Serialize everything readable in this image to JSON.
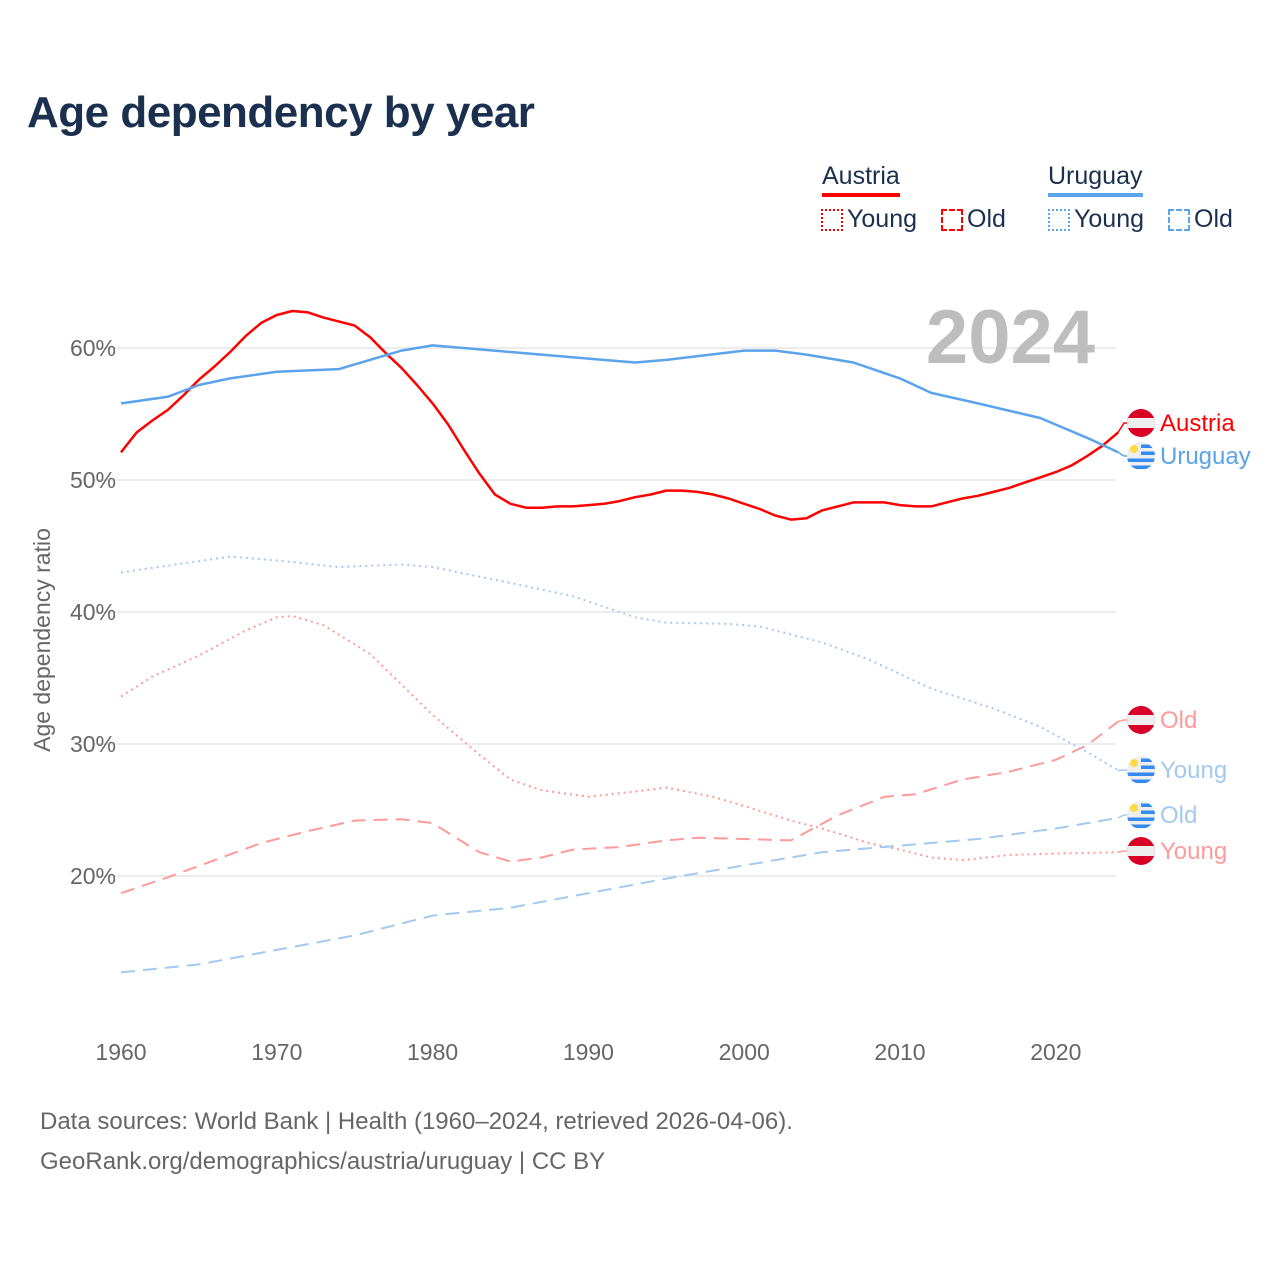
{
  "title": "Age dependency by year",
  "legend": {
    "groups": [
      {
        "country": "Austria",
        "color": "#ff0000",
        "items": [
          "Young",
          "Old"
        ]
      },
      {
        "country": "Uruguay",
        "color": "#5ba3ea",
        "items": [
          "Young",
          "Old"
        ]
      }
    ]
  },
  "year_watermark": "2024",
  "sources": {
    "line1": "Data sources: World Bank | Health (1960–2024, retrieved 2026-04-06).",
    "line2": "GeoRank.org/demographics/austria/uruguay | CC BY"
  },
  "end_labels": [
    "Austria",
    "Uruguay",
    "Old",
    "Young",
    "Old",
    "Young"
  ],
  "chart_data": {
    "type": "line",
    "title": "Age dependency by year",
    "xlabel": "",
    "ylabel": "Age dependency ratio",
    "xlim": [
      1960,
      2024
    ],
    "ylim": [
      10,
      64
    ],
    "x_ticks": [
      "1960",
      "1970",
      "1980",
      "1990",
      "2000",
      "2010",
      "2020"
    ],
    "y_ticks": [
      "20%",
      "30%",
      "40%",
      "50%",
      "60%"
    ],
    "y_tick_values": [
      20,
      30,
      40,
      50,
      60
    ],
    "grid": true,
    "series": [
      {
        "name": "Austria",
        "style": "solid",
        "color": "#ff0000",
        "x": [
          1960,
          1961,
          1962,
          1963,
          1964,
          1965,
          1966,
          1967,
          1968,
          1969,
          1970,
          1971,
          1972,
          1973,
          1974,
          1975,
          1976,
          1977,
          1978,
          1979,
          1980,
          1981,
          1982,
          1983,
          1984,
          1985,
          1986,
          1987,
          1988,
          1989,
          1990,
          1991,
          1992,
          1993,
          1994,
          1995,
          1996,
          1997,
          1998,
          1999,
          2000,
          2001,
          2002,
          2003,
          2004,
          2005,
          2006,
          2007,
          2008,
          2009,
          2010,
          2011,
          2012,
          2013,
          2014,
          2015,
          2016,
          2017,
          2018,
          2019,
          2020,
          2021,
          2022,
          2023,
          2024
        ],
        "y": [
          52.1,
          53.6,
          54.5,
          55.3,
          56.4,
          57.6,
          58.6,
          59.7,
          60.9,
          61.9,
          62.5,
          62.8,
          62.7,
          62.3,
          62.0,
          61.7,
          60.8,
          59.6,
          58.5,
          57.2,
          55.8,
          54.2,
          52.3,
          50.5,
          48.9,
          48.2,
          47.9,
          47.9,
          48.0,
          48.0,
          48.1,
          48.2,
          48.4,
          48.7,
          48.9,
          49.2,
          49.2,
          49.1,
          48.9,
          48.6,
          48.2,
          47.8,
          47.3,
          47.0,
          47.1,
          47.7,
          48.0,
          48.3,
          48.3,
          48.3,
          48.1,
          48.0,
          48.0,
          48.3,
          48.6,
          48.8,
          49.1,
          49.4,
          49.8,
          50.2,
          50.6,
          51.1,
          51.8,
          52.6,
          53.6
        ]
      },
      {
        "name": "Uruguay",
        "style": "solid",
        "color": "#5ba3ea",
        "x": [
          1960,
          1963,
          1965,
          1967,
          1970,
          1974,
          1978,
          1980,
          1985,
          1990,
          1993,
          1995,
          2000,
          2002,
          2004,
          2007,
          2010,
          2012,
          2015,
          2019,
          2020,
          2022,
          2024
        ],
        "y": [
          55.8,
          56.3,
          57.2,
          57.7,
          58.2,
          58.4,
          59.8,
          60.2,
          59.7,
          59.2,
          58.9,
          59.1,
          59.8,
          59.8,
          59.5,
          58.9,
          57.7,
          56.6,
          55.8,
          54.7,
          54.2,
          53.2,
          52.1
        ]
      },
      {
        "name": "Austria Young",
        "style": "dotted",
        "color": "#ff9a9a",
        "x": [
          1960,
          1962,
          1965,
          1968,
          1970,
          1971,
          1973,
          1976,
          1980,
          1983,
          1985,
          1987,
          1990,
          1993,
          1995,
          1998,
          2000,
          2003,
          2005,
          2008,
          2010,
          2012,
          2014,
          2017,
          2020,
          2024
        ],
        "y": [
          33.6,
          35.1,
          36.7,
          38.6,
          39.6,
          39.7,
          39.0,
          36.8,
          32.2,
          29.2,
          27.3,
          26.5,
          26.0,
          26.4,
          26.7,
          26.0,
          25.3,
          24.2,
          23.6,
          22.5,
          22.0,
          21.4,
          21.2,
          21.6,
          21.7,
          21.8
        ]
      },
      {
        "name": "Austria Old",
        "style": "dashed",
        "color": "#ff9a9a",
        "x": [
          1960,
          1963,
          1966,
          1969,
          1972,
          1975,
          1978,
          1980,
          1983,
          1985,
          1987,
          1989,
          1992,
          1995,
          1997,
          2000,
          2003,
          2006,
          2009,
          2011,
          2014,
          2017,
          2020,
          2022,
          2024
        ],
        "y": [
          18.7,
          19.9,
          21.2,
          22.5,
          23.4,
          24.2,
          24.3,
          24.0,
          21.8,
          21.1,
          21.4,
          22.0,
          22.2,
          22.7,
          22.9,
          22.8,
          22.7,
          24.6,
          26.0,
          26.2,
          27.3,
          27.9,
          28.8,
          29.9,
          31.7
        ]
      },
      {
        "name": "Uruguay Young",
        "style": "dotted",
        "color": "#a3c9f0",
        "x": [
          1960,
          1967,
          1970,
          1974,
          1978,
          1980,
          1985,
          1989,
          1993,
          1995,
          1999,
          2001,
          2005,
          2008,
          2012,
          2016,
          2019,
          2022,
          2024
        ],
        "y": [
          43.0,
          44.2,
          43.9,
          43.4,
          43.6,
          43.4,
          42.2,
          41.2,
          39.6,
          39.2,
          39.1,
          38.9,
          37.7,
          36.4,
          34.2,
          32.7,
          31.3,
          29.4,
          28.0
        ]
      },
      {
        "name": "Uruguay Old",
        "style": "dashed",
        "color": "#a3c9f0",
        "x": [
          1960,
          1965,
          1970,
          1975,
          1980,
          1985,
          1990,
          1995,
          2000,
          2005,
          2010,
          2015,
          2020,
          2024
        ],
        "y": [
          12.7,
          13.3,
          14.4,
          15.5,
          17.0,
          17.6,
          18.7,
          19.8,
          20.8,
          21.8,
          22.3,
          22.8,
          23.6,
          24.4
        ]
      }
    ]
  }
}
